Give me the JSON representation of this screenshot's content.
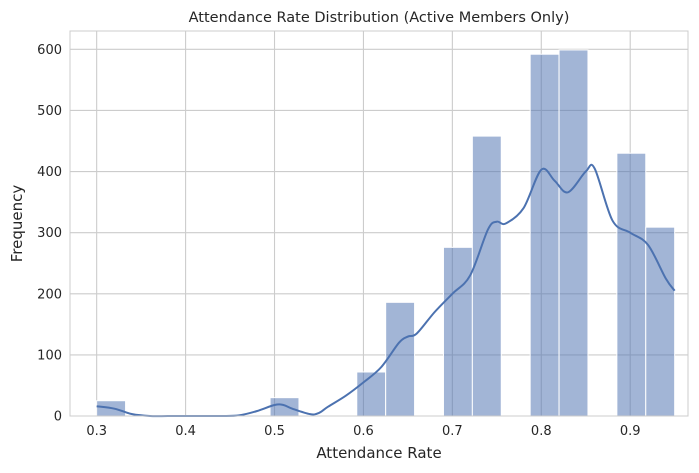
{
  "chart_data": {
    "type": "bar",
    "title": "Attendance Rate Distribution (Active Members Only)",
    "xlabel": "Attendance Rate",
    "ylabel": "Frequency",
    "xlim": [
      0.27,
      0.965
    ],
    "ylim": [
      0,
      630
    ],
    "xticks": [
      0.3,
      0.4,
      0.5,
      0.6,
      0.7,
      0.8,
      0.9
    ],
    "xtick_labels": [
      "0.3",
      "0.4",
      "0.5",
      "0.6",
      "0.7",
      "0.8",
      "0.9"
    ],
    "yticks": [
      0,
      100,
      200,
      300,
      400,
      500,
      600
    ],
    "ytick_labels": [
      "0",
      "100",
      "200",
      "300",
      "400",
      "500",
      "600"
    ],
    "grid": true,
    "bar_color": "#4c72b0",
    "bar_opacity": 0.52,
    "line_color": "#4c72b0",
    "histogram": {
      "bin_start": 0.3,
      "bin_width": 0.0325,
      "counts": [
        25,
        0,
        0,
        0,
        0,
        0,
        30,
        0,
        0,
        72,
        186,
        0,
        276,
        458,
        0,
        592,
        599,
        0,
        430,
        309
      ]
    },
    "kde": {
      "x": [
        0.3,
        0.32,
        0.34,
        0.36,
        0.38,
        0.4,
        0.42,
        0.44,
        0.46,
        0.48,
        0.5,
        0.51,
        0.52,
        0.54,
        0.55,
        0.56,
        0.58,
        0.6,
        0.62,
        0.64,
        0.65,
        0.66,
        0.68,
        0.7,
        0.72,
        0.74,
        0.75,
        0.76,
        0.78,
        0.8,
        0.815,
        0.83,
        0.85,
        0.86,
        0.88,
        0.9,
        0.92,
        0.94,
        0.95
      ],
      "y": [
        16,
        12,
        3,
        0,
        0,
        0,
        0,
        0,
        1,
        8,
        18,
        18,
        12,
        3,
        5,
        15,
        33,
        55,
        80,
        120,
        130,
        135,
        170,
        200,
        230,
        305,
        318,
        315,
        340,
        403,
        385,
        366,
        400,
        405,
        320,
        300,
        280,
        225,
        205
      ]
    }
  }
}
